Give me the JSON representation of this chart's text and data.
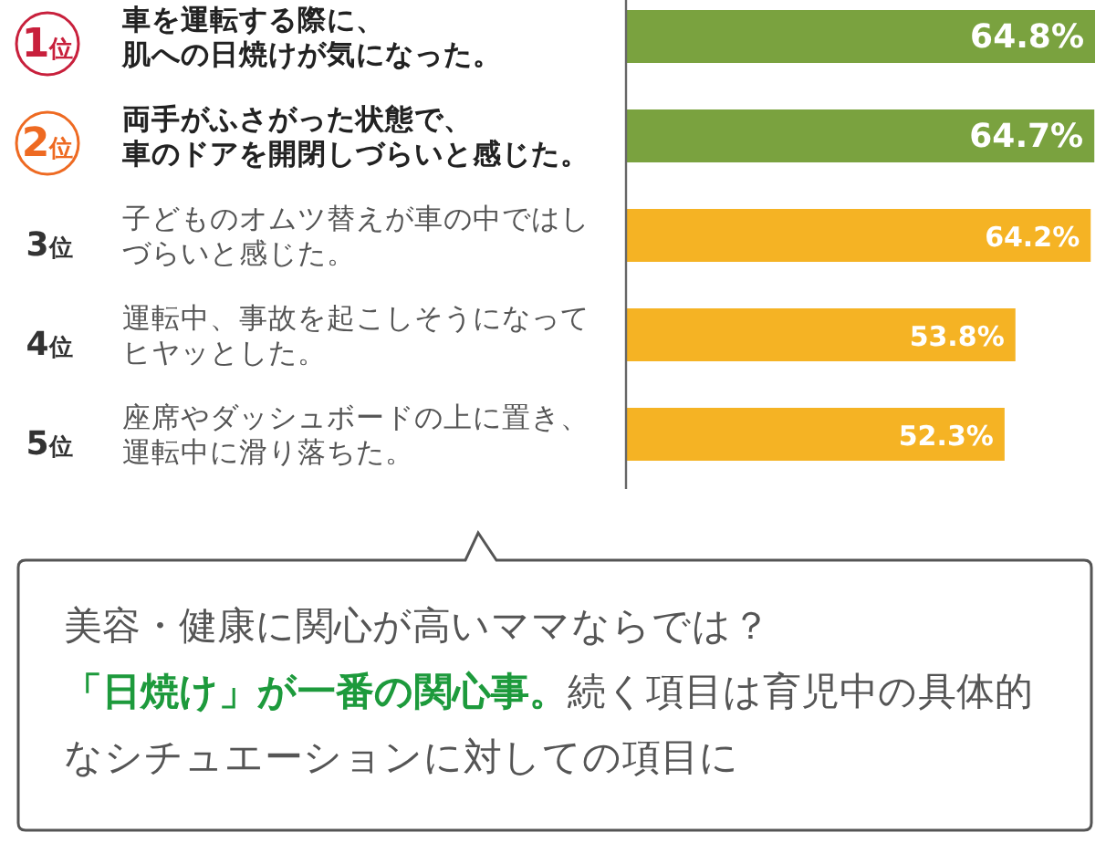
{
  "chart_data": {
    "type": "bar",
    "orientation": "horizontal",
    "categories": [
      "車を運転する際に、肌への日焼けが気になった。",
      "両手がふさがった状態で、車のドアを開閉しづらいと感じた。",
      "子どものオムツ替えが車の中ではしづらいと感じた。",
      "運転中、事故を起こしそうになってヒヤッとした。",
      "座席やダッシュボードの上に置き、運転中に滑り落ちた。"
    ],
    "values": [
      64.8,
      64.7,
      64.2,
      53.8,
      52.3
    ],
    "value_labels": [
      "64.8%",
      "64.7%",
      "64.2%",
      "53.8%",
      "52.3%"
    ],
    "colors": [
      "#7aa23f",
      "#7aa23f",
      "#f5b324",
      "#f5b324",
      "#f5b324"
    ],
    "annotations": [
      "1位",
      "2位",
      "3位",
      "4位",
      "5位",
      "美容・健康に関心が高いママならでは？",
      "**「日焼け」が一番の関心事。**続く項目は育児中の具体的なシチュエーションに対しての項目に"
    ]
  }
}
